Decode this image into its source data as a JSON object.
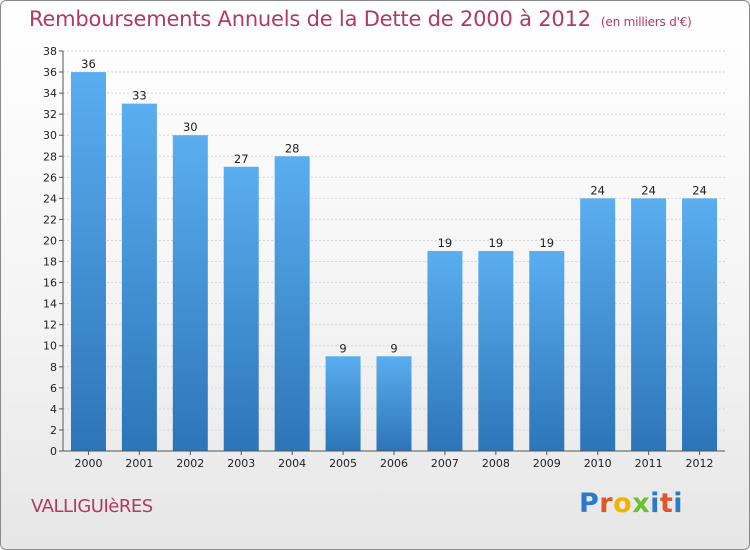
{
  "header": {
    "title": "Remboursements Annuels de la Dette de 2000 à 2012",
    "subtitle": "(en milliers d'€)"
  },
  "commune": "VALLIGUIèRES",
  "logo": {
    "text": "Proxiti",
    "colors": [
      "#2c7bc9",
      "#e0562b",
      "#f0b400",
      "#6cbf2e",
      "#2c7bc9",
      "#e0562b",
      "#2c7bc9"
    ]
  },
  "colors": {
    "bar_top": "#5aaef0",
    "bar_bottom": "#2c75b8",
    "title": "#b03a62"
  },
  "chart_data": {
    "type": "bar",
    "title": "Remboursements Annuels de la Dette de 2000 à 2012",
    "subtitle": "(en milliers d'€)",
    "categories": [
      "2000",
      "2001",
      "2002",
      "2003",
      "2004",
      "2005",
      "2006",
      "2007",
      "2008",
      "2009",
      "2010",
      "2011",
      "2012"
    ],
    "values": [
      36,
      33,
      30,
      27,
      28,
      9,
      9,
      19,
      19,
      19,
      24,
      24,
      24
    ],
    "ylim": [
      0,
      38
    ],
    "yticks": [
      0,
      2,
      4,
      6,
      8,
      10,
      12,
      14,
      16,
      18,
      20,
      22,
      24,
      26,
      28,
      30,
      32,
      34,
      36,
      38
    ],
    "grid": true,
    "data_labels": true,
    "xlabel": "",
    "ylabel": ""
  }
}
